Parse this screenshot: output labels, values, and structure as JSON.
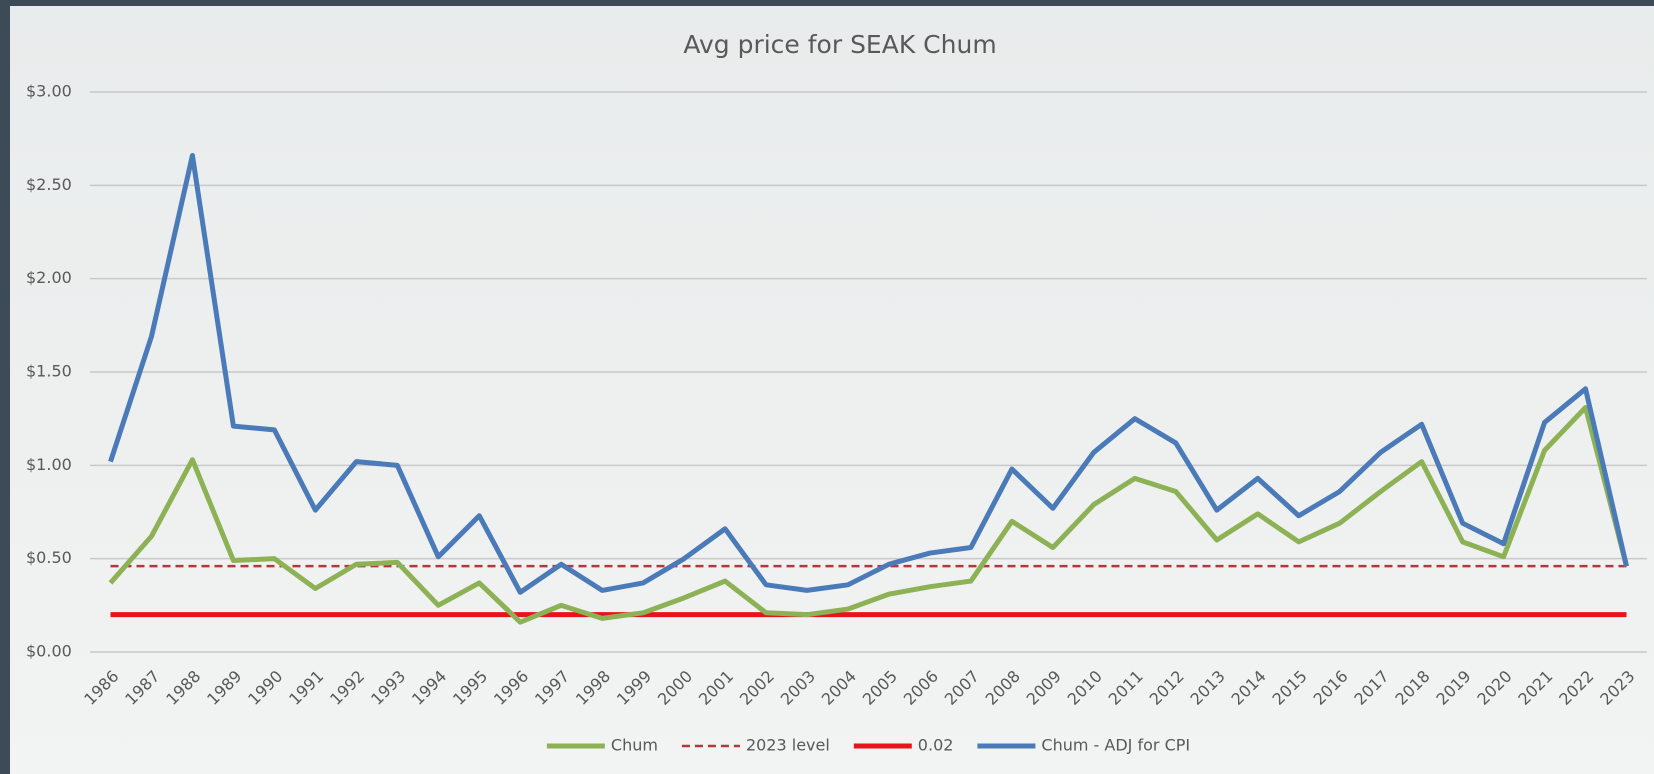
{
  "chart_data": {
    "type": "line",
    "title": "Avg price for SEAK Chum",
    "categories": [
      "1986",
      "1987",
      "1988",
      "1989",
      "1990",
      "1991",
      "1992",
      "1993",
      "1994",
      "1995",
      "1996",
      "1997",
      "1998",
      "1999",
      "2000",
      "2001",
      "2002",
      "2003",
      "2004",
      "2005",
      "2006",
      "2007",
      "2008",
      "2009",
      "2010",
      "2011",
      "2012",
      "2013",
      "2014",
      "2015",
      "2016",
      "2017",
      "2018",
      "2019",
      "2020",
      "2021",
      "2022",
      "2023"
    ],
    "series": [
      {
        "name": "Chum",
        "color": "#8db255",
        "dash": false,
        "values": [
          0.37,
          0.62,
          1.03,
          0.49,
          0.5,
          0.34,
          0.47,
          0.48,
          0.25,
          0.37,
          0.16,
          0.25,
          0.18,
          0.21,
          0.29,
          0.38,
          0.21,
          0.2,
          0.23,
          0.31,
          0.35,
          0.38,
          0.7,
          0.56,
          0.79,
          0.93,
          0.86,
          0.6,
          0.74,
          0.59,
          0.69,
          0.86,
          1.02,
          0.59,
          0.51,
          1.08,
          1.31,
          0.46
        ]
      },
      {
        "name": "2023 level",
        "color": "#b03a3a",
        "dash": true,
        "values": [
          0.46,
          0.46,
          0.46,
          0.46,
          0.46,
          0.46,
          0.46,
          0.46,
          0.46,
          0.46,
          0.46,
          0.46,
          0.46,
          0.46,
          0.46,
          0.46,
          0.46,
          0.46,
          0.46,
          0.46,
          0.46,
          0.46,
          0.46,
          0.46,
          0.46,
          0.46,
          0.46,
          0.46,
          0.46,
          0.46,
          0.46,
          0.46,
          0.46,
          0.46,
          0.46,
          0.46,
          0.46,
          0.46
        ]
      },
      {
        "name": "0.02",
        "color": "#e8141c",
        "dash": false,
        "values": [
          0.2,
          0.2,
          0.2,
          0.2,
          0.2,
          0.2,
          0.2,
          0.2,
          0.2,
          0.2,
          0.2,
          0.2,
          0.2,
          0.2,
          0.2,
          0.2,
          0.2,
          0.2,
          0.2,
          0.2,
          0.2,
          0.2,
          0.2,
          0.2,
          0.2,
          0.2,
          0.2,
          0.2,
          0.2,
          0.2,
          0.2,
          0.2,
          0.2,
          0.2,
          0.2,
          0.2,
          0.2,
          0.2
        ]
      },
      {
        "name": "Chum - ADJ for CPI",
        "color": "#4a7ab8",
        "dash": false,
        "values": [
          1.02,
          1.69,
          2.66,
          1.21,
          1.19,
          0.76,
          1.02,
          1.0,
          0.51,
          0.73,
          0.32,
          0.47,
          0.33,
          0.37,
          0.5,
          0.66,
          0.36,
          0.33,
          0.36,
          0.47,
          0.53,
          0.56,
          0.98,
          0.77,
          1.07,
          1.25,
          1.12,
          0.76,
          0.93,
          0.73,
          0.86,
          1.07,
          1.22,
          0.69,
          0.58,
          1.23,
          1.41,
          0.46
        ]
      }
    ],
    "ylim": [
      0,
      3
    ],
    "yticks": [
      {
        "value": 0,
        "label": "$0.00"
      },
      {
        "value": 0.5,
        "label": "$0.50"
      },
      {
        "value": 1,
        "label": "$1.00"
      },
      {
        "value": 1.5,
        "label": "$1.50"
      },
      {
        "value": 2,
        "label": "$2.00"
      },
      {
        "value": 2.5,
        "label": "$2.50"
      },
      {
        "value": 3,
        "label": "$3.00"
      }
    ],
    "grid": true,
    "legend": "bottom"
  }
}
